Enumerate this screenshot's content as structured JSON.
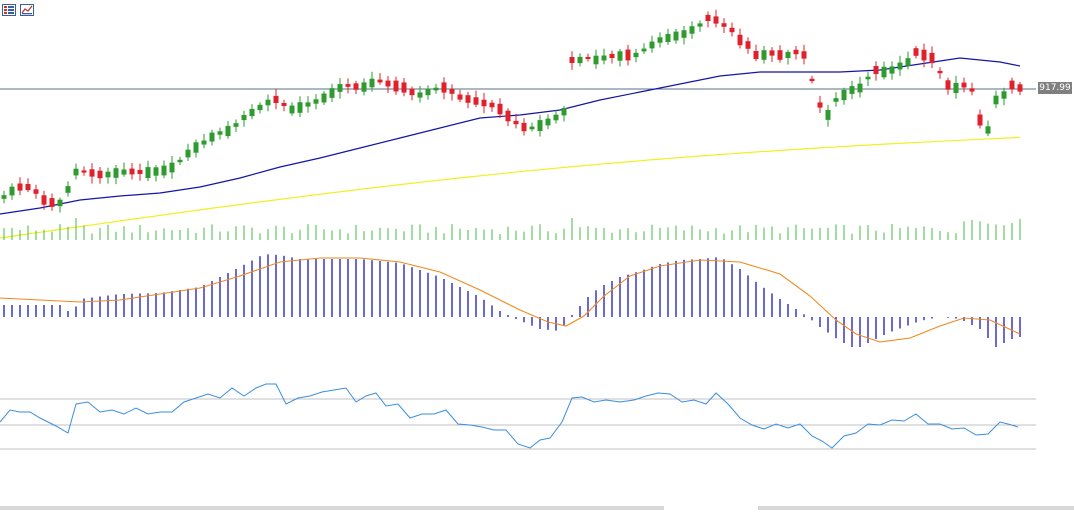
{
  "toolbar": {
    "icons": [
      "list-icon",
      "chart-settings-icon"
    ]
  },
  "colors": {
    "bull": "#2e9b2e",
    "bear": "#e0202a",
    "ma_fast": "#1515a8",
    "ma_slow": "#f0f020",
    "volume": "#44bb44",
    "macd_hist": "#1a1ab5",
    "macd_signal": "#f08a1a",
    "rsi": "#3a8ee0",
    "level_line": "#c0c0c0",
    "price_line": "#5a6f88",
    "price_tag_bg": "#808080"
  },
  "chart_data": {
    "type": "candlestick",
    "current_price_label": "917.99",
    "current_price": 917.99,
    "candles": [],
    "ma_fast": [],
    "ma_slow": [],
    "volume": [],
    "macd_histogram": [],
    "macd_signal": [],
    "rsi": [],
    "rsi_levels": [
      70,
      50,
      30
    ]
  }
}
